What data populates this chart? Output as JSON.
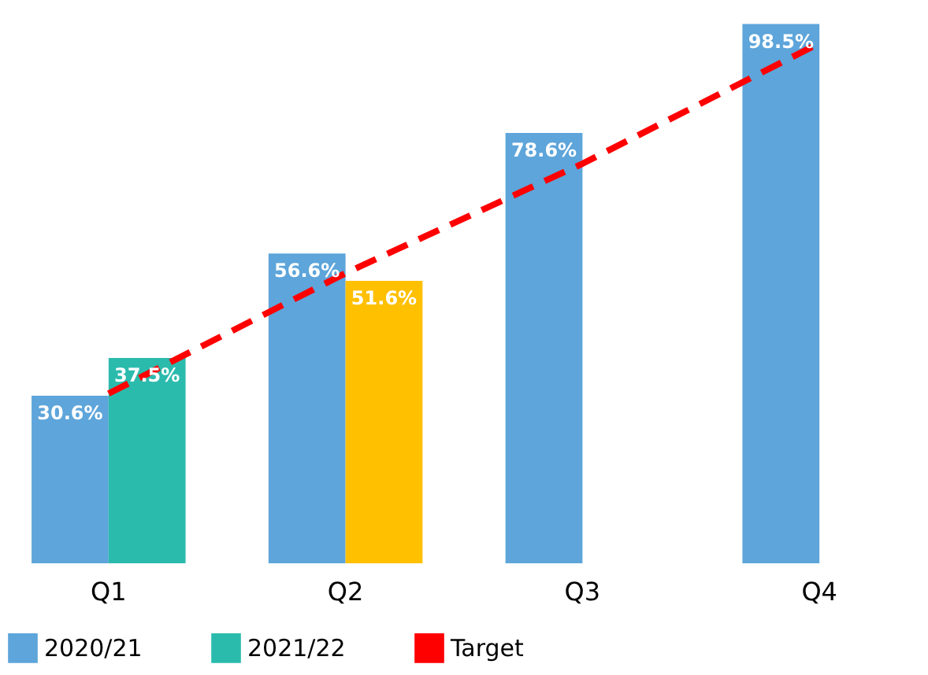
{
  "chart_data": {
    "type": "bar",
    "categories": [
      "Q1",
      "Q2",
      "Q3",
      "Q4"
    ],
    "series": [
      {
        "name": "2020/21",
        "color": "#5da5da",
        "values": [
          30.6,
          56.6,
          78.6,
          98.5
        ],
        "value_labels": [
          "30.6%",
          "56.6%",
          "78.6%",
          "98.5%"
        ]
      },
      {
        "name": "2021/22",
        "color": "#2bbbad",
        "colors": [
          "#2bbbad",
          "#ffc000",
          null,
          null
        ],
        "values": [
          37.5,
          51.6,
          null,
          null
        ],
        "value_labels": [
          "37.5%",
          "51.6%",
          null,
          null
        ]
      },
      {
        "name": "Target",
        "type": "line",
        "color": "#ff0000",
        "line_style": "dashed",
        "marker": "none",
        "values": [
          31,
          53,
          73,
          95
        ]
      }
    ],
    "legend": "bottom",
    "grid": false
  }
}
